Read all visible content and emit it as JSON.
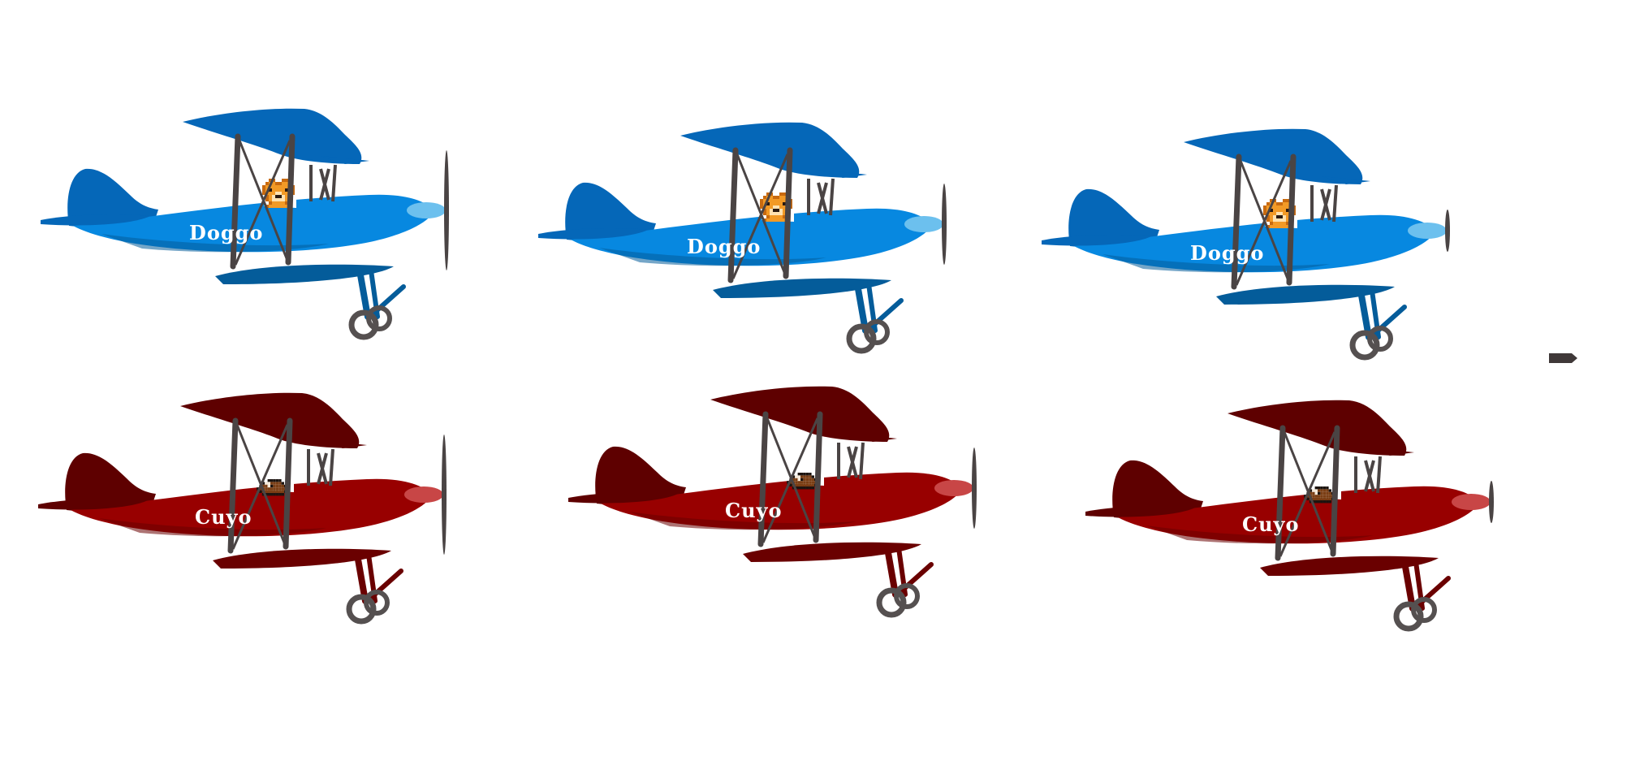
{
  "planes": [
    {
      "name": "Doggo",
      "team": "blue",
      "propeller_frame": 1
    },
    {
      "name": "Doggo",
      "team": "blue",
      "propeller_frame": 2
    },
    {
      "name": "Doggo",
      "team": "blue",
      "propeller_frame": 3
    },
    {
      "name": "Cuyo",
      "team": "red",
      "propeller_frame": 1
    },
    {
      "name": "Cuyo",
      "team": "red",
      "propeller_frame": 2
    },
    {
      "name": "Cuyo",
      "team": "red",
      "propeller_frame": 3
    }
  ],
  "colors": {
    "blue_body": "#0788e0",
    "blue_wing": "#0567b8",
    "blue_shadow": "#045c9a",
    "blue_nose": "#6cc0ee",
    "red_body": "#980000",
    "red_wing": "#5e0000",
    "red_shadow": "#6a0000",
    "red_nose": "#c84646",
    "strut": "#4a4444",
    "wheel": "#555050",
    "background": "#ffffff"
  },
  "icons": {
    "pilot_blue": "dog-pilot-icon",
    "pilot_red": "guinea-pig-pilot-icon",
    "marker": "arrow-marker-icon"
  }
}
